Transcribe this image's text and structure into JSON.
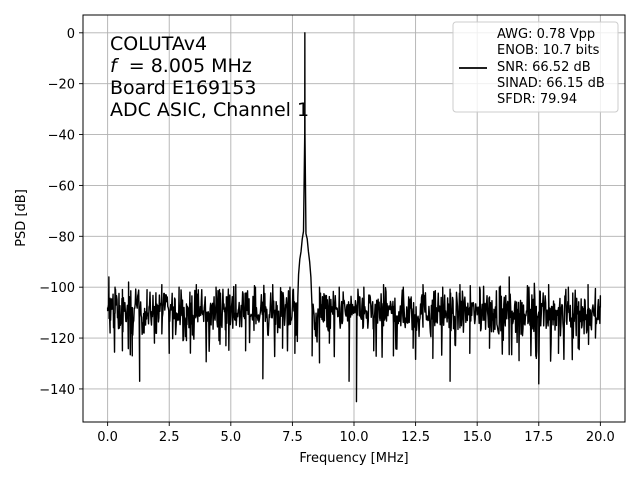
{
  "chart_data": {
    "type": "line",
    "xlabel": "Frequency [MHz]",
    "ylabel": "PSD [dB]",
    "xlim": [
      -1.0,
      21.0
    ],
    "ylim": [
      -153,
      7
    ],
    "grid": true,
    "x_ticks": [
      0.0,
      2.5,
      5.0,
      7.5,
      10.0,
      12.5,
      15.0,
      17.5,
      20.0
    ],
    "x_tick_labels": [
      "0.0",
      "2.5",
      "5.0",
      "7.5",
      "10.0",
      "12.5",
      "15.0",
      "17.5",
      "20.0"
    ],
    "y_ticks": [
      0,
      -20,
      -40,
      -60,
      -80,
      -100,
      -120,
      -140
    ],
    "y_tick_labels": [
      "0",
      "−20",
      "−40",
      "−60",
      "−80",
      "−100",
      "−120",
      "−140"
    ],
    "annotation_lines": [
      "COLUTAv4",
      "= 8.005 MHz",
      "Board E169153",
      "ADC ASIC, Channel 1"
    ],
    "annotation_f_symbol": "f",
    "legend": {
      "placement": "upper right",
      "line_color": "#000000",
      "entries": [
        "AWG: 0.78 Vpp",
        "ENOB: 10.7 bits",
        "SNR: 66.52 dB",
        "SINAD: 66.15 dB",
        "SFDR: 79.94"
      ]
    },
    "series": [
      {
        "color": "#000000",
        "noise_floor_db": -110,
        "noise_spread_db": 8,
        "x_start": 0.0,
        "x_end": 20.0,
        "points": [
          {
            "x": 0.0,
            "y": -108
          },
          {
            "x": 0.05,
            "y": -96
          },
          {
            "x": 0.1,
            "y": -118
          },
          {
            "x": 0.3,
            "y": -100
          },
          {
            "x": 0.6,
            "y": -125
          },
          {
            "x": 0.85,
            "y": -98
          },
          {
            "x": 1.0,
            "y": -127
          },
          {
            "x": 1.3,
            "y": -137
          },
          {
            "x": 1.6,
            "y": -101
          },
          {
            "x": 1.9,
            "y": -122
          },
          {
            "x": 2.2,
            "y": -99
          },
          {
            "x": 2.5,
            "y": -126
          },
          {
            "x": 2.9,
            "y": -100
          },
          {
            "x": 3.2,
            "y": -121
          },
          {
            "x": 3.6,
            "y": -99
          },
          {
            "x": 4.0,
            "y": -127
          },
          {
            "x": 4.4,
            "y": -100
          },
          {
            "x": 4.8,
            "y": -123
          },
          {
            "x": 5.2,
            "y": -99
          },
          {
            "x": 5.6,
            "y": -125
          },
          {
            "x": 6.0,
            "y": -100
          },
          {
            "x": 6.3,
            "y": -136
          },
          {
            "x": 6.7,
            "y": -99
          },
          {
            "x": 7.1,
            "y": -124
          },
          {
            "x": 7.4,
            "y": -100
          },
          {
            "x": 7.6,
            "y": -126
          },
          {
            "x": 7.75,
            "y": -95
          },
          {
            "x": 7.8,
            "y": -89
          },
          {
            "x": 7.85,
            "y": -86
          },
          {
            "x": 7.9,
            "y": -81
          },
          {
            "x": 7.95,
            "y": -78
          },
          {
            "x": 8.0,
            "y": -40
          },
          {
            "x": 8.005,
            "y": 0
          },
          {
            "x": 8.01,
            "y": -40
          },
          {
            "x": 8.05,
            "y": -79
          },
          {
            "x": 8.1,
            "y": -81
          },
          {
            "x": 8.15,
            "y": -86
          },
          {
            "x": 8.2,
            "y": -90
          },
          {
            "x": 8.25,
            "y": -96
          },
          {
            "x": 8.3,
            "y": -127
          },
          {
            "x": 8.6,
            "y": -100
          },
          {
            "x": 9.0,
            "y": -122
          },
          {
            "x": 9.4,
            "y": -100
          },
          {
            "x": 9.8,
            "y": -137
          },
          {
            "x": 10.1,
            "y": -145
          },
          {
            "x": 10.4,
            "y": -100
          },
          {
            "x": 10.8,
            "y": -125
          },
          {
            "x": 11.2,
            "y": -99
          },
          {
            "x": 11.6,
            "y": -127
          },
          {
            "x": 12.0,
            "y": -100
          },
          {
            "x": 12.4,
            "y": -124
          },
          {
            "x": 12.8,
            "y": -99
          },
          {
            "x": 13.2,
            "y": -128
          },
          {
            "x": 13.6,
            "y": -100
          },
          {
            "x": 13.9,
            "y": -137
          },
          {
            "x": 14.3,
            "y": -99
          },
          {
            "x": 14.7,
            "y": -126
          },
          {
            "x": 15.1,
            "y": -100
          },
          {
            "x": 15.5,
            "y": -124
          },
          {
            "x": 15.9,
            "y": -100
          },
          {
            "x": 16.3,
            "y": -96
          },
          {
            "x": 16.7,
            "y": -124
          },
          {
            "x": 17.1,
            "y": -100
          },
          {
            "x": 17.4,
            "y": -128
          },
          {
            "x": 17.5,
            "y": -138
          },
          {
            "x": 17.9,
            "y": -99
          },
          {
            "x": 18.3,
            "y": -126
          },
          {
            "x": 18.7,
            "y": -100
          },
          {
            "x": 19.1,
            "y": -124
          },
          {
            "x": 19.5,
            "y": -99
          },
          {
            "x": 19.8,
            "y": -120
          },
          {
            "x": 20.0,
            "y": -108
          }
        ]
      }
    ]
  }
}
